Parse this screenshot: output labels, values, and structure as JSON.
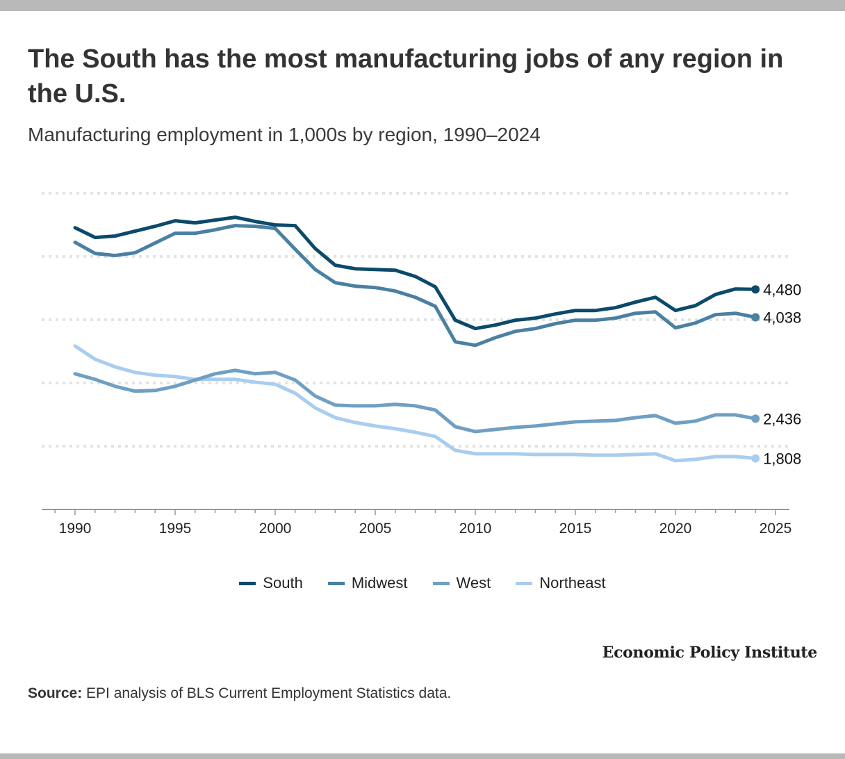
{
  "header": {
    "title": "The South has the most manufacturing jobs of any region in the U.S.",
    "subtitle": "Manufacturing employment in 1,000s by region, 1990–2024"
  },
  "chart_data": {
    "type": "line",
    "title": "The South has the most manufacturing jobs of any region in the U.S.",
    "subtitle": "Manufacturing employment in 1,000s by region, 1990–2024",
    "xlabel": "",
    "ylabel": "",
    "x": [
      1990,
      1991,
      1992,
      1993,
      1994,
      1995,
      1996,
      1997,
      1998,
      1999,
      2000,
      2001,
      2002,
      2003,
      2004,
      2005,
      2006,
      2007,
      2008,
      2009,
      2010,
      2011,
      2012,
      2013,
      2014,
      2015,
      2016,
      2017,
      2018,
      2019,
      2020,
      2021,
      2022,
      2023,
      2024
    ],
    "xlim": [
      1988.3,
      2025.7
    ],
    "ylim": [
      1000,
      6000
    ],
    "x_ticks": [
      "1990",
      "1995",
      "2000",
      "2005",
      "2010",
      "2015",
      "2020",
      "2025"
    ],
    "y_gridlines": [
      2000,
      3000,
      4000,
      5000,
      6000
    ],
    "grid": true,
    "legend_position": "bottom-center",
    "series": [
      {
        "name": "South",
        "color": "#0b4a6b",
        "end_label": "4,480",
        "values": [
          5455,
          5301,
          5323,
          5400,
          5477,
          5565,
          5532,
          5576,
          5620,
          5554,
          5499,
          5488,
          5125,
          4861,
          4806,
          4795,
          4784,
          4685,
          4520,
          3992,
          3860,
          3915,
          3992,
          4025,
          4091,
          4146,
          4146,
          4190,
          4278,
          4355,
          4146,
          4223,
          4399,
          4487,
          4480
        ]
      },
      {
        "name": "Midwest",
        "color": "#4a80a2",
        "end_label": "4,038",
        "values": [
          5224,
          5048,
          5015,
          5059,
          5213,
          5367,
          5367,
          5422,
          5488,
          5477,
          5444,
          5114,
          4795,
          4586,
          4531,
          4509,
          4454,
          4355,
          4212,
          3651,
          3596,
          3717,
          3816,
          3860,
          3937,
          3992,
          3992,
          4025,
          4102,
          4124,
          3871,
          3948,
          4080,
          4102,
          4038
        ]
      },
      {
        "name": "West",
        "color": "#6f9fc3",
        "end_label": "2,436",
        "values": [
          3145,
          3057,
          2947,
          2870,
          2881,
          2947,
          3046,
          3145,
          3200,
          3145,
          3167,
          3046,
          2793,
          2650,
          2639,
          2639,
          2661,
          2639,
          2573,
          2309,
          2232,
          2265,
          2298,
          2320,
          2353,
          2386,
          2397,
          2408,
          2452,
          2485,
          2364,
          2397,
          2496,
          2496,
          2436
        ]
      },
      {
        "name": "Northeast",
        "color": "#a9cdee",
        "end_label": "1,808",
        "values": [
          3585,
          3376,
          3255,
          3167,
          3123,
          3101,
          3057,
          3057,
          3057,
          3013,
          2980,
          2837,
          2606,
          2452,
          2375,
          2320,
          2276,
          2221,
          2155,
          1935,
          1880,
          1880,
          1880,
          1869,
          1869,
          1869,
          1858,
          1858,
          1869,
          1880,
          1770,
          1792,
          1836,
          1836,
          1808
        ]
      }
    ]
  },
  "legend": {
    "items": [
      {
        "label": "South",
        "color": "#0b4a6b"
      },
      {
        "label": "Midwest",
        "color": "#4a80a2"
      },
      {
        "label": "West",
        "color": "#6f9fc3"
      },
      {
        "label": "Northeast",
        "color": "#a9cdee"
      }
    ]
  },
  "footer": {
    "brand": "Economic Policy Institute",
    "source_label": "Source:",
    "source_text": " EPI analysis of BLS Current Employment Statistics data."
  }
}
